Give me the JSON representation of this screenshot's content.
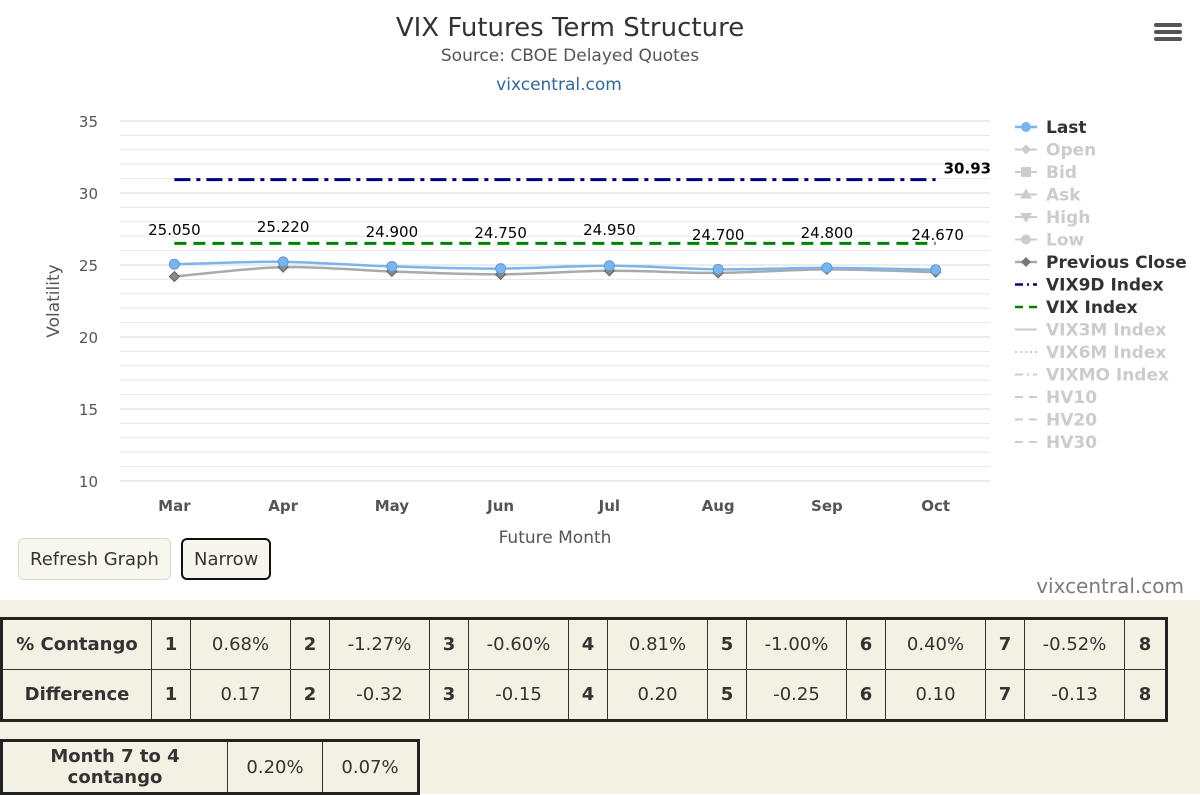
{
  "chart_data": {
    "type": "line",
    "title": "VIX Futures Term Structure",
    "subtitle": "Source: CBOE Delayed Quotes",
    "credit_link": "vixcentral.com",
    "xlabel": "Future Month",
    "ylabel": "Volatility",
    "ylim": [
      10,
      35
    ],
    "yticks": [
      10,
      15,
      20,
      25,
      30,
      35
    ],
    "categories": [
      "Mar",
      "Apr",
      "May",
      "Jun",
      "Jul",
      "Aug",
      "Sep",
      "Oct"
    ],
    "grid": true,
    "legend_position": "right",
    "series": [
      {
        "name": "Last",
        "values": [
          25.05,
          25.22,
          24.9,
          24.75,
          24.95,
          24.7,
          24.8,
          24.67
        ],
        "color": "#7cb5ec",
        "visible": true,
        "marker": "circle",
        "labels": [
          "25.050",
          "25.220",
          "24.900",
          "24.750",
          "24.950",
          "24.700",
          "24.800",
          "24.670"
        ]
      },
      {
        "name": "Open",
        "visible": false,
        "symbol": "diamond"
      },
      {
        "name": "Bid",
        "visible": false,
        "symbol": "square"
      },
      {
        "name": "Ask",
        "visible": false,
        "symbol": "triangle"
      },
      {
        "name": "High",
        "visible": false,
        "symbol": "triangle-down"
      },
      {
        "name": "Low",
        "visible": false,
        "symbol": "circle"
      },
      {
        "name": "Previous Close",
        "values": [
          24.2,
          24.85,
          24.55,
          24.35,
          24.6,
          24.45,
          24.7,
          24.5
        ],
        "color": "#aaaaaa",
        "visible": true,
        "marker": "diamond"
      },
      {
        "name": "VIX9D Index",
        "values": [
          30.93,
          30.93,
          30.93,
          30.93,
          30.93,
          30.93,
          30.93,
          30.93
        ],
        "color": "#000080",
        "visible": true,
        "dash": "dashdot",
        "end_label": "30.93"
      },
      {
        "name": "VIX Index",
        "values": [
          26.5,
          26.5,
          26.5,
          26.5,
          26.5,
          26.5,
          26.5,
          26.5
        ],
        "color": "#008000",
        "visible": true,
        "dash": "dash"
      },
      {
        "name": "VIX3M Index",
        "visible": false,
        "symbol": "solid"
      },
      {
        "name": "VIX6M Index",
        "visible": false,
        "symbol": "dot"
      },
      {
        "name": "VIXMO Index",
        "visible": false,
        "symbol": "dashdot"
      },
      {
        "name": "HV10",
        "visible": false,
        "symbol": "dash"
      },
      {
        "name": "HV20",
        "visible": false,
        "symbol": "dash"
      },
      {
        "name": "HV30",
        "visible": false,
        "symbol": "dash"
      }
    ]
  },
  "buttons": {
    "refresh": "Refresh Graph",
    "narrow": "Narrow"
  },
  "watermark": "vixcentral.com",
  "contango_table": {
    "rows": [
      {
        "label": "% Contango",
        "cells": [
          [
            "1",
            "0.68%"
          ],
          [
            "2",
            "-1.27%"
          ],
          [
            "3",
            "-0.60%"
          ],
          [
            "4",
            "0.81%"
          ],
          [
            "5",
            "-1.00%"
          ],
          [
            "6",
            "0.40%"
          ],
          [
            "7",
            "-0.52%"
          ]
        ],
        "last": "8"
      },
      {
        "label": "Difference",
        "cells": [
          [
            "1",
            "0.17"
          ],
          [
            "2",
            "-0.32"
          ],
          [
            "3",
            "-0.15"
          ],
          [
            "4",
            "0.20"
          ],
          [
            "5",
            "-0.25"
          ],
          [
            "6",
            "0.10"
          ],
          [
            "7",
            "-0.13"
          ]
        ],
        "last": "8"
      }
    ]
  },
  "month_contango": {
    "label": "Month 7 to 4 contango",
    "values": [
      "0.20%",
      "0.07%"
    ]
  },
  "colors": {
    "grid": "#e6e6e6",
    "legend_active": "#333333",
    "legend_hidden": "#cccccc",
    "background_bottom": "#f3f1e3"
  },
  "icons": {
    "menu": "hamburger-menu-icon"
  }
}
